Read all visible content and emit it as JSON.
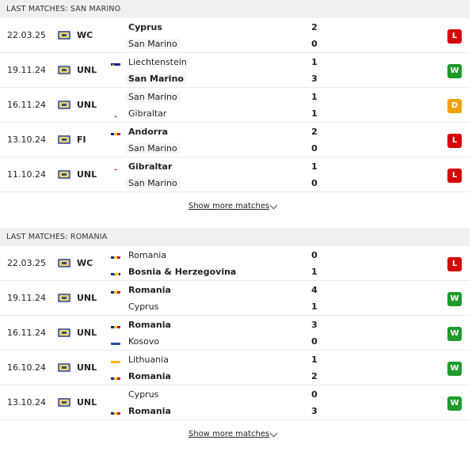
{
  "colors": {
    "loss": "#d50000",
    "win": "#1e9b2c",
    "draw": "#f2a100",
    "header_bg": "#eef0f2"
  },
  "sections": [
    {
      "title": "LAST MATCHES: SAN MARINO",
      "show_more": "Show more matches",
      "matches": [
        {
          "date": "22.03.25",
          "comp": "WC",
          "home": "Cyprus",
          "home_flag": "cyprus",
          "home_bold": true,
          "away": "San Marino",
          "away_flag": "san-marino",
          "away_bold": false,
          "home_score": "2",
          "away_score": "0",
          "result": "L"
        },
        {
          "date": "19.11.24",
          "comp": "UNL",
          "home": "Liechtenstein",
          "home_flag": "liechtenstein",
          "home_bold": false,
          "away": "San Marino",
          "away_flag": "san-marino",
          "away_bold": true,
          "home_score": "1",
          "away_score": "3",
          "result": "W"
        },
        {
          "date": "16.11.24",
          "comp": "UNL",
          "home": "San Marino",
          "home_flag": "san-marino",
          "home_bold": false,
          "away": "Gibraltar",
          "away_flag": "gibraltar",
          "away_bold": false,
          "home_score": "1",
          "away_score": "1",
          "result": "D"
        },
        {
          "date": "13.10.24",
          "comp": "FI",
          "home": "Andorra",
          "home_flag": "andorra",
          "home_bold": true,
          "away": "San Marino",
          "away_flag": "san-marino",
          "away_bold": false,
          "home_score": "2",
          "away_score": "0",
          "result": "L"
        },
        {
          "date": "11.10.24",
          "comp": "UNL",
          "home": "Gibraltar",
          "home_flag": "gibraltar",
          "home_bold": true,
          "away": "San Marino",
          "away_flag": "san-marino",
          "away_bold": false,
          "home_score": "1",
          "away_score": "0",
          "result": "L"
        }
      ]
    },
    {
      "title": "LAST MATCHES: ROMANIA",
      "show_more": "Show more matches",
      "matches": [
        {
          "date": "22.03.25",
          "comp": "WC",
          "home": "Romania",
          "home_flag": "romania",
          "home_bold": false,
          "away": "Bosnia & Herzegovina",
          "away_flag": "bosnia",
          "away_bold": true,
          "home_score": "0",
          "away_score": "1",
          "result": "L"
        },
        {
          "date": "19.11.24",
          "comp": "UNL",
          "home": "Romania",
          "home_flag": "romania",
          "home_bold": true,
          "away": "Cyprus",
          "away_flag": "cyprus",
          "away_bold": false,
          "home_score": "4",
          "away_score": "1",
          "result": "W"
        },
        {
          "date": "16.11.24",
          "comp": "UNL",
          "home": "Romania",
          "home_flag": "romania",
          "home_bold": true,
          "away": "Kosovo",
          "away_flag": "kosovo",
          "away_bold": false,
          "home_score": "3",
          "away_score": "0",
          "result": "W"
        },
        {
          "date": "16.10.24",
          "comp": "UNL",
          "home": "Lithuania",
          "home_flag": "lithuania",
          "home_bold": false,
          "away": "Romania",
          "away_flag": "romania",
          "away_bold": true,
          "home_score": "1",
          "away_score": "2",
          "result": "W"
        },
        {
          "date": "13.10.24",
          "comp": "UNL",
          "home": "Cyprus",
          "home_flag": "cyprus",
          "home_bold": false,
          "away": "Romania",
          "away_flag": "romania",
          "away_bold": true,
          "home_score": "0",
          "away_score": "3",
          "result": "W"
        }
      ]
    }
  ]
}
